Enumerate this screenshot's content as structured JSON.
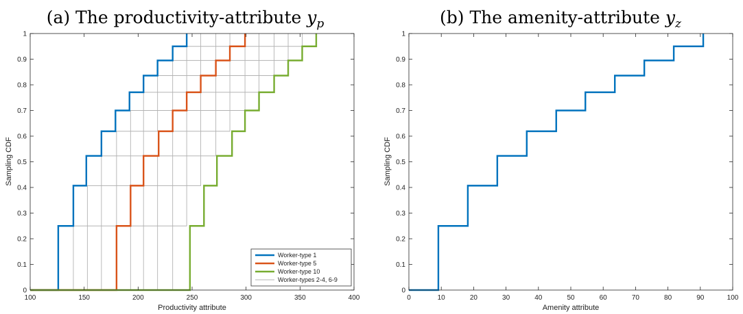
{
  "chart_data": [
    {
      "type": "line",
      "title": {
        "prefix": "(a) The productivity-attribute ",
        "var": "y",
        "sub": "p"
      },
      "xlabel": "Productivity attribute",
      "ylabel": "Sampling CDF",
      "xlim": [
        100,
        400
      ],
      "ylim": [
        0,
        1
      ],
      "xticks": [
        "100",
        "150",
        "200",
        "250",
        "300",
        "350",
        "400"
      ],
      "yticks": [
        "0",
        "0.1",
        "0.2",
        "0.3",
        "0.4",
        "0.5",
        "0.6",
        "0.7",
        "0.8",
        "0.9",
        "1"
      ],
      "cdf_levels": [
        0.25,
        0.407,
        0.523,
        0.619,
        0.7,
        0.771,
        0.836,
        0.895,
        0.95,
        1.0
      ],
      "legend_position": "bottom-right",
      "series": [
        {
          "name": "Worker-type 1",
          "color": "#0072BD",
          "steps": [
            126,
            140,
            152,
            166,
            179,
            192,
            205,
            218,
            232,
            245
          ]
        },
        {
          "name": "Worker-type 5",
          "color": "#D95319",
          "steps": [
            180,
            193,
            205,
            219,
            232,
            245,
            258,
            272,
            285,
            299
          ]
        },
        {
          "name": "Worker-type 10",
          "color": "#77AC30",
          "steps": [
            248,
            261,
            273,
            287,
            299,
            312,
            326,
            339,
            352,
            365
          ]
        },
        {
          "name": "Worker-types 2-4, 6-9",
          "color": "#b3b3b3",
          "group": [
            [
              140,
              153,
              166,
              180,
              193,
              205,
              218,
              232,
              245,
              258
            ],
            [
              153,
              166,
              180,
              193,
              205,
              218,
              232,
              245,
              258,
              272
            ],
            [
              166,
              180,
              193,
              205,
              218,
              232,
              245,
              258,
              272,
              285
            ],
            [
              193,
              205,
              218,
              232,
              245,
              258,
              272,
              285,
              299,
              312
            ],
            [
              205,
              218,
              232,
              245,
              258,
              272,
              285,
              299,
              312,
              326
            ],
            [
              218,
              232,
              245,
              258,
              272,
              285,
              299,
              312,
              326,
              339
            ],
            [
              232,
              245,
              258,
              272,
              285,
              299,
              312,
              326,
              339,
              352
            ]
          ]
        }
      ]
    },
    {
      "type": "line",
      "title": {
        "prefix": "(b) The amenity-attribute ",
        "var": "y",
        "sub": "z"
      },
      "xlabel": "Amenity attribute",
      "ylabel": "Sampling CDF",
      "xlim": [
        0,
        100
      ],
      "ylim": [
        0,
        1
      ],
      "xticks": [
        "0",
        "10",
        "20",
        "30",
        "40",
        "50",
        "60",
        "70",
        "80",
        "90",
        "100"
      ],
      "yticks": [
        "0",
        "0.1",
        "0.2",
        "0.3",
        "0.4",
        "0.5",
        "0.6",
        "0.7",
        "0.8",
        "0.9",
        "1"
      ],
      "cdf_levels": [
        0.25,
        0.407,
        0.523,
        0.619,
        0.7,
        0.771,
        0.836,
        0.895,
        0.95,
        1.0
      ],
      "series": [
        {
          "name": "",
          "color": "#0072BD",
          "steps": [
            9.1,
            18.2,
            27.3,
            36.4,
            45.5,
            54.5,
            63.6,
            72.7,
            81.8,
            90.9
          ]
        }
      ]
    }
  ]
}
